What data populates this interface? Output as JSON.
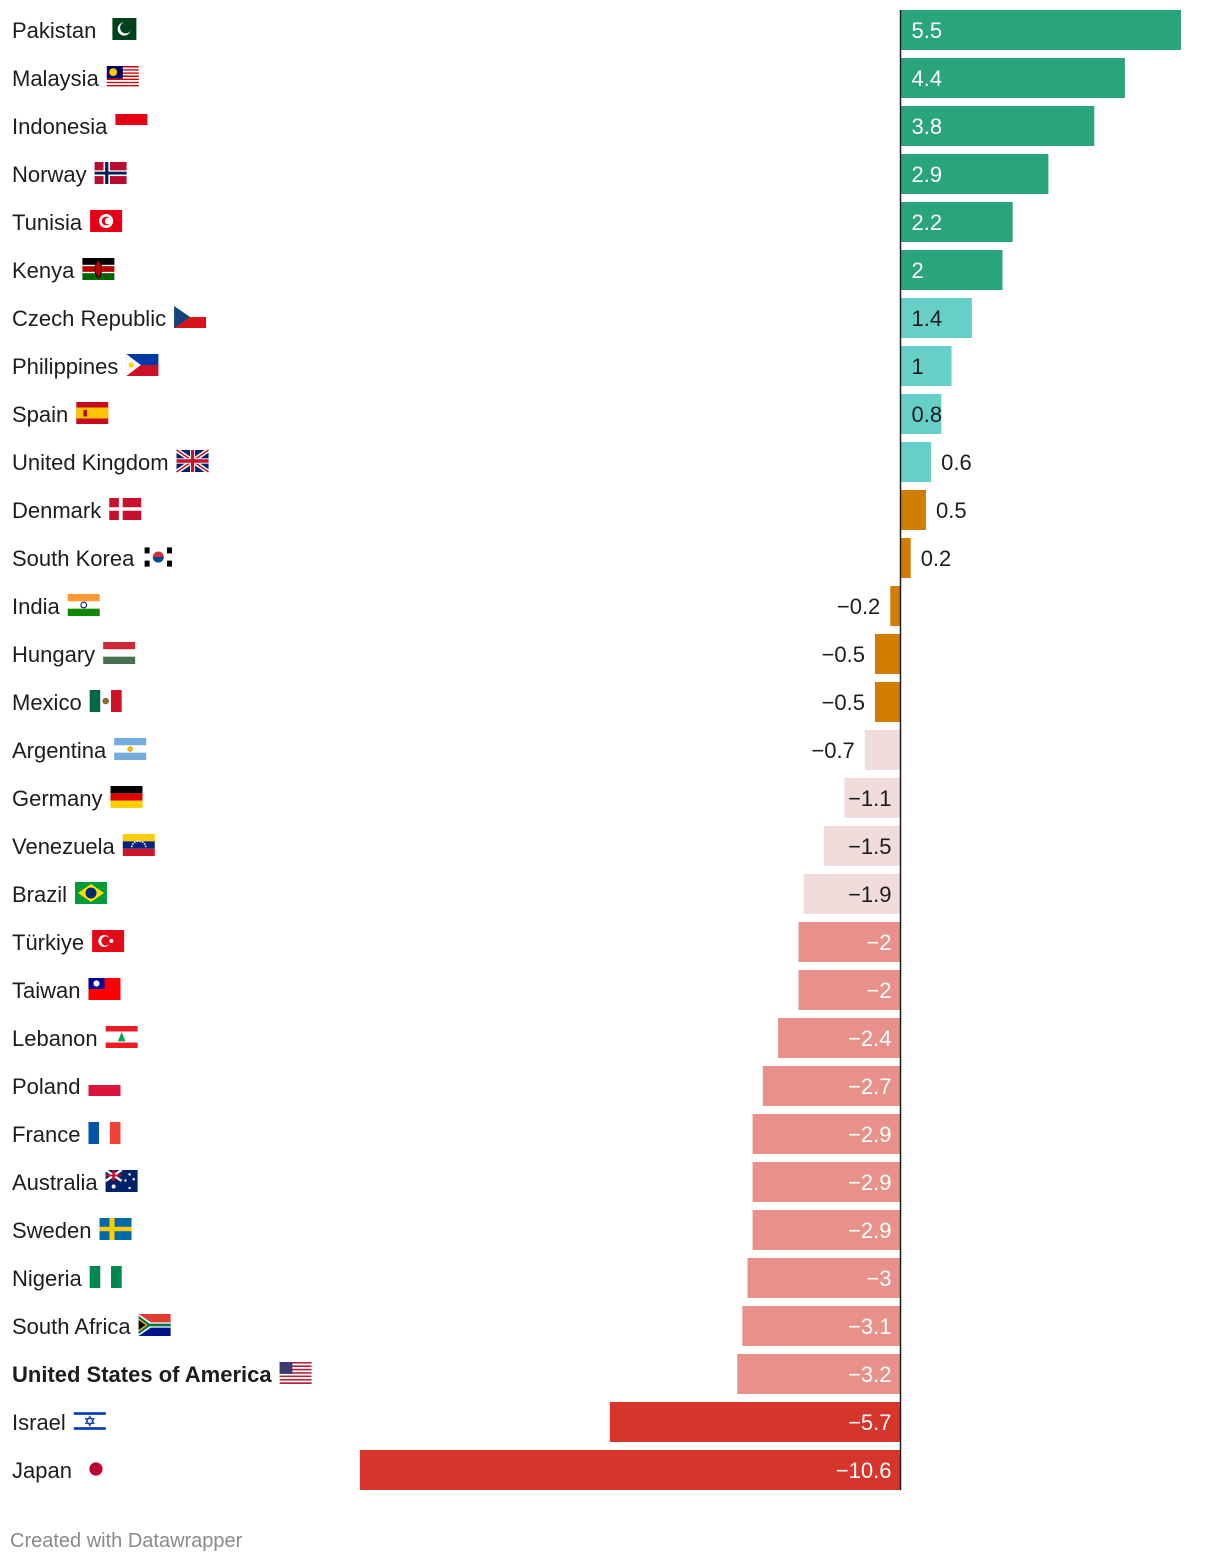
{
  "chart_data": {
    "type": "bar",
    "orientation": "horizontal",
    "title": "",
    "xlabel": "",
    "ylabel": "",
    "xlim": [
      -10.6,
      5.5
    ],
    "grid": false,
    "categories": [
      "Pakistan",
      "Malaysia",
      "Indonesia",
      "Norway",
      "Tunisia",
      "Kenya",
      "Czech Republic",
      "Philippines",
      "Spain",
      "United Kingdom",
      "Denmark",
      "South Korea",
      "India",
      "Hungary",
      "Mexico",
      "Argentina",
      "Germany",
      "Venezuela",
      "Brazil",
      "Türkiye",
      "Taiwan",
      "Lebanon",
      "Poland",
      "France",
      "Australia",
      "Sweden",
      "Nigeria",
      "South Africa",
      "United States of America",
      "Israel",
      "Japan"
    ],
    "values": [
      5.5,
      4.4,
      3.8,
      2.9,
      2.2,
      2,
      1.4,
      1,
      0.8,
      0.6,
      0.5,
      0.2,
      -0.2,
      -0.5,
      -0.5,
      -0.7,
      -1.1,
      -1.5,
      -1.9,
      -2,
      -2,
      -2.4,
      -2.7,
      -2.9,
      -2.9,
      -2.9,
      -3,
      -3.1,
      -3.2,
      -5.7,
      -10.6
    ],
    "value_labels": [
      "5.5",
      "4.4",
      "3.8",
      "2.9",
      "2.2",
      "2",
      "1.4",
      "1",
      "0.8",
      "0.6",
      "0.5",
      "0.2",
      "−0.2",
      "−0.5",
      "−0.5",
      "−0.7",
      "−1.1",
      "−1.5",
      "−1.9",
      "−2",
      "−2",
      "−2.4",
      "−2.7",
      "−2.9",
      "−2.9",
      "−2.9",
      "−3",
      "−3.1",
      "−3.2",
      "−5.7",
      "−10.6"
    ],
    "highlighted": [
      "United States of America"
    ],
    "color_bins": [
      {
        "min": 2,
        "color": "#2aa47c"
      },
      {
        "min": 0.6,
        "color": "#66cfc7"
      },
      {
        "min": -0.5,
        "color": "#d07d00"
      },
      {
        "min": -1.9,
        "color": "#f0dcdb"
      },
      {
        "min": -3.2,
        "color": "#e8918a"
      },
      {
        "min": -99,
        "color": "#d7342b"
      }
    ],
    "flags": [
      "pakistan-flag",
      "malaysia-flag",
      "indonesia-flag",
      "norway-flag",
      "tunisia-flag",
      "kenya-flag",
      "czech-flag",
      "philippines-flag",
      "spain-flag",
      "uk-flag",
      "denmark-flag",
      "south-korea-flag",
      "india-flag",
      "hungary-flag",
      "mexico-flag",
      "argentina-flag",
      "germany-flag",
      "venezuela-flag",
      "brazil-flag",
      "turkiye-flag",
      "taiwan-flag",
      "lebanon-flag",
      "poland-flag",
      "france-flag",
      "australia-flag",
      "sweden-flag",
      "nigeria-flag",
      "south-africa-flag",
      "usa-flag",
      "israel-flag",
      "japan-flag"
    ]
  },
  "footer": {
    "credit": "Created with Datawrapper"
  }
}
